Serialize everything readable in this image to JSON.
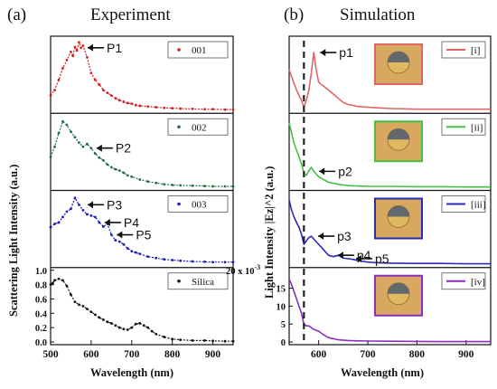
{
  "figure": {
    "left_panel": {
      "label": "(a)",
      "title": "Experiment"
    },
    "right_panel": {
      "label": "(b)",
      "title": "Simulation"
    }
  },
  "colors": {
    "red": "#d42020",
    "green": "#1e6e44",
    "blue": "#1f1fb0",
    "black": "#111111",
    "sim_red": "#e06666",
    "sim_green": "#44c044",
    "sim_blue": "#2b2bb8",
    "sim_purple": "#8a2fc0",
    "inset_bg": "#d8a860",
    "sphere_core": "#4a5a70",
    "sphere_shell": "#e0b860"
  },
  "chart_data": [
    {
      "type": "line",
      "id": "experiment",
      "xlabel": "Wavelength (nm)",
      "ylabel": "Scattering Light Intensity (a.u.)",
      "xlim": [
        500,
        950
      ],
      "xticks": [
        "500",
        "600",
        "700",
        "800",
        "900"
      ],
      "grid": false,
      "legend_position": "top-right",
      "series": [
        {
          "name": "001",
          "color_key": "red",
          "x": [
            500,
            510,
            520,
            530,
            540,
            550,
            555,
            560,
            565,
            570,
            575,
            580,
            590,
            600,
            610,
            620,
            630,
            640,
            650,
            660,
            670,
            680,
            690,
            700,
            710,
            720,
            740,
            760,
            780,
            800,
            820,
            850,
            880,
            900,
            930,
            950
          ],
          "y": [
            0.22,
            0.3,
            0.45,
            0.62,
            0.74,
            0.86,
            0.8,
            0.93,
            0.88,
            1.0,
            0.92,
            0.95,
            0.78,
            0.55,
            0.45,
            0.38,
            0.3,
            0.26,
            0.22,
            0.18,
            0.15,
            0.13,
            0.11,
            0.1,
            0.08,
            0.07,
            0.06,
            0.05,
            0.04,
            0.035,
            0.03,
            0.025,
            0.02,
            0.02,
            0.015,
            0.015
          ],
          "annotations": [
            {
              "text": "P1",
              "x": 578
            }
          ]
        },
        {
          "name": "002",
          "color_key": "green",
          "x": [
            500,
            510,
            520,
            530,
            540,
            550,
            560,
            570,
            580,
            590,
            600,
            610,
            620,
            630,
            640,
            650,
            660,
            670,
            680,
            690,
            700,
            720,
            740,
            760,
            780,
            800,
            820,
            850,
            880,
            900,
            930,
            950
          ],
          "y": [
            0.45,
            0.6,
            0.8,
            0.97,
            0.92,
            0.82,
            0.74,
            0.66,
            0.6,
            0.64,
            0.58,
            0.5,
            0.44,
            0.4,
            0.34,
            0.3,
            0.27,
            0.25,
            0.22,
            0.18,
            0.16,
            0.12,
            0.09,
            0.07,
            0.05,
            0.04,
            0.035,
            0.03,
            0.025,
            0.02,
            0.02,
            0.02
          ],
          "annotations": [
            {
              "text": "P2",
              "x": 600
            }
          ]
        },
        {
          "name": "003",
          "color_key": "blue",
          "x": [
            500,
            510,
            520,
            530,
            540,
            550,
            560,
            570,
            580,
            590,
            600,
            610,
            620,
            630,
            640,
            650,
            660,
            670,
            680,
            690,
            700,
            710,
            720,
            740,
            760,
            780,
            800,
            820,
            850,
            880,
            900,
            930,
            950
          ],
          "y": [
            0.55,
            0.6,
            0.62,
            0.7,
            0.78,
            0.82,
            0.98,
            0.88,
            0.8,
            0.74,
            0.72,
            0.7,
            0.62,
            0.56,
            0.6,
            0.44,
            0.36,
            0.34,
            0.3,
            0.24,
            0.2,
            0.18,
            0.16,
            0.12,
            0.1,
            0.08,
            0.07,
            0.06,
            0.05,
            0.045,
            0.04,
            0.04,
            0.04
          ],
          "annotations": [
            {
              "text": "P3",
              "x": 578
            },
            {
              "text": "P4",
              "x": 620
            },
            {
              "text": "P5",
              "x": 650
            }
          ]
        },
        {
          "name": "Silica",
          "color_key": "black",
          "x": [
            500,
            505,
            510,
            520,
            530,
            540,
            550,
            560,
            570,
            580,
            590,
            600,
            610,
            620,
            630,
            640,
            650,
            660,
            670,
            680,
            690,
            700,
            710,
            720,
            730,
            740,
            750,
            760,
            780,
            800,
            820,
            850,
            880,
            900,
            930,
            950
          ],
          "y": [
            0.8,
            0.82,
            0.86,
            0.88,
            0.86,
            0.78,
            0.66,
            0.56,
            0.52,
            0.5,
            0.46,
            0.42,
            0.38,
            0.34,
            0.31,
            0.28,
            0.26,
            0.23,
            0.2,
            0.18,
            0.17,
            0.2,
            0.25,
            0.26,
            0.23,
            0.2,
            0.15,
            0.11,
            0.07,
            0.04,
            0.03,
            0.02,
            0.02,
            0.015,
            0.01,
            0.01
          ],
          "ylim": [
            0,
            1.0
          ],
          "yticks": [
            "0.0",
            "0.2",
            "0.4",
            "0.6",
            "0.8",
            "1.0"
          ]
        }
      ]
    },
    {
      "type": "line",
      "id": "simulation",
      "xlabel": "Wavelength (nm)",
      "ylabel": "Light Intensity |Ez|^2 (a.u.)",
      "xlim": [
        540,
        950
      ],
      "xticks": [
        "600",
        "700",
        "800",
        "900"
      ],
      "grid": false,
      "legend_position": "top-right",
      "dashed_line_x": 570,
      "bottom_scale_label": "20 x 10^-3",
      "series": [
        {
          "name": "[i]",
          "color_key": "sim_red",
          "x": [
            540,
            545,
            550,
            555,
            560,
            565,
            570,
            575,
            580,
            585,
            590,
            595,
            600,
            605,
            610,
            620,
            630,
            640,
            650,
            660,
            680,
            700,
            720,
            750,
            800,
            850,
            900,
            950
          ],
          "y": [
            0.6,
            0.5,
            0.4,
            0.3,
            0.22,
            0.15,
            0.05,
            0.15,
            0.3,
            0.55,
            0.85,
            0.6,
            0.42,
            0.38,
            0.36,
            0.3,
            0.24,
            0.18,
            0.12,
            0.09,
            0.06,
            0.05,
            0.04,
            0.03,
            0.02,
            0.02,
            0.02,
            0.02
          ],
          "annotations": [
            {
              "text": "p1",
              "x": 592
            }
          ]
        },
        {
          "name": "[ii]",
          "color_key": "sim_green",
          "x": [
            540,
            545,
            550,
            555,
            560,
            565,
            570,
            575,
            580,
            585,
            590,
            595,
            600,
            610,
            620,
            640,
            660,
            680,
            700,
            750,
            800,
            850,
            900,
            950
          ],
          "y": [
            0.95,
            0.8,
            0.65,
            0.55,
            0.45,
            0.35,
            0.22,
            0.18,
            0.25,
            0.3,
            0.24,
            0.2,
            0.16,
            0.12,
            0.08,
            0.05,
            0.03,
            0.025,
            0.02,
            0.02,
            0.015,
            0.015,
            0.01,
            0.01
          ],
          "annotations": [
            {
              "text": "p2",
              "x": 590
            }
          ]
        },
        {
          "name": "[iii]",
          "color_key": "sim_blue",
          "x": [
            540,
            545,
            550,
            555,
            560,
            565,
            570,
            575,
            580,
            585,
            590,
            600,
            610,
            620,
            630,
            640,
            650,
            660,
            670,
            680,
            700,
            720,
            750,
            800,
            850,
            900,
            950
          ],
          "y": [
            0.95,
            0.8,
            0.7,
            0.62,
            0.55,
            0.45,
            0.3,
            0.35,
            0.4,
            0.42,
            0.38,
            0.3,
            0.22,
            0.14,
            0.12,
            0.14,
            0.1,
            0.09,
            0.08,
            0.06,
            0.04,
            0.03,
            0.025,
            0.02,
            0.02,
            0.015,
            0.015
          ],
          "annotations": [
            {
              "text": "p3",
              "x": 588
            },
            {
              "text": "p4",
              "x": 628
            },
            {
              "text": "p5",
              "x": 665
            }
          ]
        },
        {
          "name": "[iv]",
          "color_key": "sim_purple",
          "x": [
            540,
            545,
            550,
            555,
            560,
            565,
            570,
            575,
            580,
            590,
            600,
            610,
            620,
            640,
            660,
            680,
            700,
            750,
            800,
            850,
            900,
            950
          ],
          "y": [
            17.5,
            16,
            14,
            12,
            10,
            8,
            5,
            4.5,
            4.5,
            3.5,
            3,
            2,
            1.2,
            0.6,
            0.4,
            0.3,
            0.25,
            0.2,
            0.15,
            0.1,
            0.1,
            0.1
          ],
          "ylim": [
            0,
            20
          ],
          "yticks": [
            "0",
            "5",
            "10",
            "15"
          ]
        }
      ]
    }
  ]
}
